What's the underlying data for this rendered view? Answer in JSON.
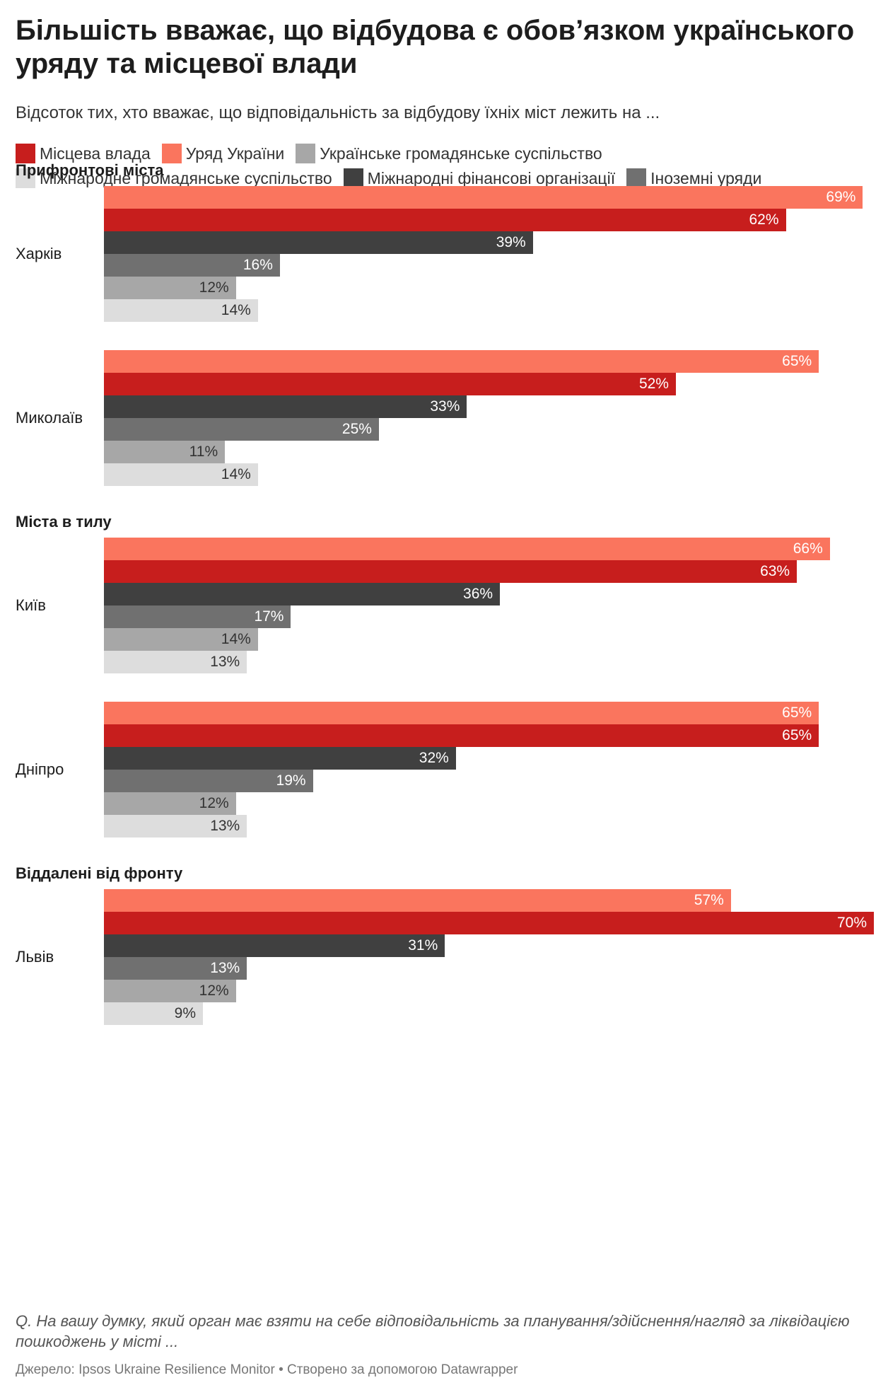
{
  "title": "Більшість вважає, що відбудова є обов’язком українського уряду та місцевої влади",
  "subtitle": "Відсоток тих, хто вважає, що відповідальність за відбудову їхніх міст лежить на ...",
  "legend": [
    {
      "label": "Місцева влада",
      "color": "#c71e1d"
    },
    {
      "label": "Уряд України",
      "color": "#fa755e"
    },
    {
      "label": "Українське громадянське суспільство",
      "color": "#a7a7a7"
    },
    {
      "label": "Міжнародне громадянське суспільство",
      "color": "#dddddd"
    },
    {
      "label": "Міжнародні фінансові організації",
      "color": "#404040"
    },
    {
      "label": "Іноземні уряди",
      "color": "#707070"
    }
  ],
  "notes": "Q. На вашу думку, який орган має взяти на себе відповідальність за планування/здійснення/нагляд за ліквідацією пошкоджень у місті ...",
  "source": "Джерело: Ipsos Ukraine Resilience Monitor • Створено за допомогою Datawrapper",
  "chart_data": {
    "type": "bar",
    "orientation": "horizontal",
    "xlim": [
      0,
      70
    ],
    "value_suffix": "%",
    "bar_order": [
      "Уряд України",
      "Місцева влада",
      "Міжнародні фінансові організації",
      "Іноземні уряди",
      "Українське громадянське суспільство",
      "Міжнародне громадянське суспільство"
    ],
    "groups": [
      {
        "label": "Прифронтові міста",
        "cities": [
          {
            "name": "Харків",
            "values": [
              69,
              62,
              39,
              16,
              12,
              14
            ]
          },
          {
            "name": "Миколаїв",
            "values": [
              65,
              52,
              33,
              25,
              11,
              14
            ]
          }
        ]
      },
      {
        "label": "Міста в тилу",
        "cities": [
          {
            "name": "Київ",
            "values": [
              66,
              63,
              36,
              17,
              14,
              13
            ]
          },
          {
            "name": "Дніпро",
            "values": [
              65,
              65,
              32,
              19,
              12,
              13
            ]
          }
        ]
      },
      {
        "label": "Віддалені від фронту",
        "cities": [
          {
            "name": "Львів",
            "values": [
              57,
              70,
              31,
              13,
              12,
              9
            ]
          }
        ]
      }
    ]
  }
}
